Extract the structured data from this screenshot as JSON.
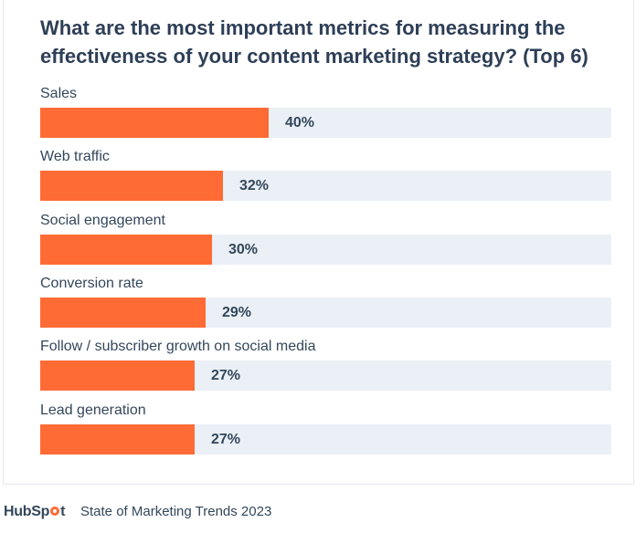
{
  "title": "What are the most important metrics for measuring the effectiveness of your content marketing strategy? (Top 6)",
  "footer": {
    "logo_hub": "HubSp",
    "logo_t": "t",
    "source": "State of Marketing Trends 2023"
  },
  "colors": {
    "bar": "#ff6b35",
    "track": "#eaf0f6",
    "text": "#33475b"
  },
  "chart_data": {
    "type": "bar",
    "orientation": "horizontal",
    "title": "What are the most important metrics for measuring the effectiveness of your content marketing strategy? (Top 6)",
    "categories": [
      "Sales",
      "Web traffic",
      "Social engagement",
      "Conversion rate",
      "Follow / subscriber growth on social media",
      "Lead generation"
    ],
    "values": [
      40,
      32,
      30,
      29,
      27,
      27
    ],
    "value_labels": [
      "40%",
      "32%",
      "30%",
      "29%",
      "27%",
      "27%"
    ],
    "unit": "%",
    "xlim": [
      0,
      100
    ],
    "xlabel": "",
    "ylabel": ""
  }
}
